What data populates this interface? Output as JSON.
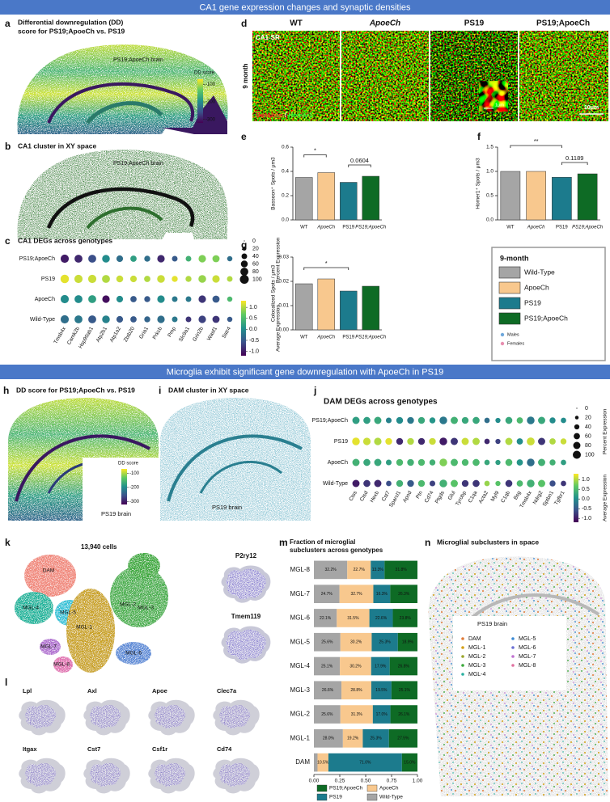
{
  "banners": [
    "CA1 gene expression changes and synaptic densities",
    "Microglia exhibit significant gene downregulation with ApoeCh in PS19"
  ],
  "panel_a": {
    "letter": "a",
    "title_lines": [
      "Differential downregulation (DD)",
      "score for PS19;ApoeCh vs. PS19"
    ],
    "image_label": "PS19;ApoeCh brain",
    "colorbar": {
      "title": "DD score",
      "range": [
        -320,
        -70
      ],
      "ticks": [
        -100,
        -200,
        -300
      ]
    }
  },
  "panel_b": {
    "letter": "b",
    "title": "CA1 cluster in XY space",
    "image_label": "PS19;ApoeCh brain"
  },
  "panel_c": {
    "letter": "c",
    "title": "CA1 DEGs across genotypes"
  },
  "panel_d": {
    "letter": "d",
    "columns": [
      "WT",
      "ApoeCh",
      "PS19",
      "PS19;ApoeCh"
    ],
    "column_colors": [
      "#8c8c8c",
      "#c9b07a",
      "#1c7b8d",
      "#0e6b25"
    ],
    "row_label": "9 month",
    "region": "CA1-SR",
    "stains": [
      "Bassoon",
      " / ",
      "Homer1"
    ],
    "scale_inset": "1μm",
    "scale": "10μm"
  },
  "panel_e": {
    "letter": "e"
  },
  "panel_f": {
    "letter": "f"
  },
  "panel_g": {
    "letter": "g"
  },
  "legend_box": {
    "title": "9-month",
    "entries": [
      {
        "name": "Wild-Type",
        "color": "#a5a5a5"
      },
      {
        "name": "ApoeCh",
        "color": "#f8c88e"
      },
      {
        "name": "PS19",
        "color": "#1c7b8d"
      },
      {
        "name": "PS19;ApoeCh",
        "color": "#0e6b25"
      }
    ],
    "sex": [
      {
        "name": "Males",
        "color": "#6fa8dc"
      },
      {
        "name": "Females",
        "color": "#e88fb0"
      }
    ]
  },
  "panel_h": {
    "letter": "h",
    "title": "DD score for PS19;ApoeCh vs. PS19",
    "image_label": "PS19 brain",
    "colorbar": {
      "title": "DD score",
      "range": [
        -320,
        -70
      ],
      "ticks": [
        -100,
        -200,
        -300
      ]
    }
  },
  "panel_i": {
    "letter": "i",
    "title": "DAM cluster in XY space",
    "image_label": "PS19 brain"
  },
  "panel_j": {
    "letter": "j"
  },
  "panel_k": {
    "letter": "k",
    "cell_count": "13,940 cells",
    "clusters": [
      "DAM",
      "MGL-1",
      "MGL-2",
      "MGL-3",
      "MGL-4",
      "MGL-5",
      "MGL-6",
      "MGL-7",
      "MGL-8"
    ],
    "markers": [
      "P2ry12",
      "Tmem119"
    ]
  },
  "panel_l": {
    "letter": "l",
    "genes": [
      "Lpl",
      "Axl",
      "Apoe",
      "Clec7a",
      "Itgax",
      "Cst7",
      "Csf1r",
      "Cd74"
    ]
  },
  "panel_m": {
    "letter": "m"
  },
  "panel_n": {
    "letter": "n",
    "title": "Microglial subclusters in space",
    "image_label": "PS19 brain",
    "legend": [
      {
        "name": "DAM",
        "color": "#e07b39"
      },
      {
        "name": "MGL-1",
        "color": "#d4a017"
      },
      {
        "name": "MGL-2",
        "color": "#9aa52a"
      },
      {
        "name": "MGL-3",
        "color": "#3aa83a"
      },
      {
        "name": "MGL-4",
        "color": "#2ab0a0"
      },
      {
        "name": "MGL-5",
        "color": "#3a8ad4"
      },
      {
        "name": "MGL-6",
        "color": "#6a6fd4"
      },
      {
        "name": "MGL-7",
        "color": "#c070d0"
      },
      {
        "name": "MGL-8",
        "color": "#e070a0"
      }
    ]
  },
  "chart_data": [
    {
      "type": "dotplot",
      "rows": [
        "PS19;ApoeCh",
        "PS19",
        "ApoeCh",
        "Wild-Type"
      ],
      "columns": [
        "Tmsb4x",
        "Camk2b",
        "Hsp90ab1",
        "Atp2b1",
        "Atp1a2",
        "Zbtb20",
        "Gria1",
        "Prkcb",
        "Pmp",
        "Slc9a1",
        "Grin2b",
        "Wasf1",
        "Sstr4"
      ],
      "expression": [
        [
          -1.0,
          -0.9,
          -0.6,
          0.0,
          -0.3,
          0.2,
          -0.3,
          -0.9,
          -0.5,
          0.4,
          0.8,
          0.8,
          -0.3
        ],
        [
          1.2,
          1.1,
          1.1,
          1.0,
          1.1,
          1.1,
          1.0,
          1.1,
          1.2,
          1.0,
          0.9,
          1.1,
          1.0
        ],
        [
          0.0,
          0.0,
          0.2,
          -1.1,
          0.0,
          -0.5,
          -0.5,
          0.0,
          -0.2,
          -0.2,
          -0.8,
          -0.5,
          0.5
        ],
        [
          -0.3,
          -0.2,
          -0.5,
          -0.1,
          -0.5,
          -0.5,
          -0.4,
          -0.3,
          -0.2,
          -0.8,
          -0.7,
          -0.8,
          -0.5
        ]
      ],
      "percent": [
        [
          85,
          80,
          80,
          75,
          55,
          50,
          45,
          70,
          40,
          40,
          70,
          65,
          35
        ],
        [
          90,
          85,
          85,
          80,
          60,
          55,
          50,
          75,
          45,
          45,
          75,
          70,
          40
        ],
        [
          85,
          80,
          80,
          70,
          55,
          50,
          45,
          70,
          40,
          40,
          70,
          65,
          35
        ],
        [
          85,
          80,
          80,
          75,
          55,
          50,
          45,
          70,
          40,
          40,
          70,
          65,
          35
        ]
      ],
      "colormap": "viridis",
      "clim": [
        -1.2,
        1.3
      ],
      "size_legend": {
        "title": "Percent Expression",
        "values": [
          0,
          20,
          40,
          60,
          80,
          100
        ]
      },
      "color_legend": {
        "title": "Average Expression",
        "ticks": [
          {
            "value": 1,
            "label": "1.0"
          },
          0.5,
          {
            "value": 0,
            "label": "0.0"
          },
          -0.5,
          {
            "value": -1,
            "label": "-1.0"
          }
        ]
      }
    },
    {
      "type": "bar",
      "categories": [
        "WT",
        "ApoeCh",
        "PS19",
        "PS19;ApoeCh"
      ],
      "values": [
        0.35,
        0.39,
        0.31,
        0.36
      ],
      "colors": [
        "#a5a5a5",
        "#f8c88e",
        "#1c7b8d",
        "#0e6b25"
      ],
      "y_label": "Bassoon⁺ Spots / μm3",
      "ylim": [
        0,
        0.6
      ],
      "yticks": [
        {
          "value": 0,
          "label": "0.0"
        },
        0.2,
        0.4,
        0.6
      ],
      "significance": [
        {
          "label": "*",
          "between": [
            "WT",
            "ApoeCh"
          ]
        },
        {
          "label": "0.0604",
          "between": [
            "PS19",
            "PS19;ApoeCh"
          ]
        }
      ]
    },
    {
      "type": "bar",
      "categories": [
        "WT",
        "ApoeCh",
        "PS19",
        "PS19;ApoeCh"
      ],
      "values": [
        1.0,
        1.0,
        0.88,
        0.95
      ],
      "colors": [
        "#a5a5a5",
        "#f8c88e",
        "#1c7b8d",
        "#0e6b25"
      ],
      "y_label": "Homer1⁺ Spots / μm3",
      "ylim": [
        0,
        1.5
      ],
      "yticks": [
        {
          "value": 0,
          "label": "0.0"
        },
        0.5,
        {
          "value": 1,
          "label": "1.0"
        },
        1.5
      ],
      "significance": [
        {
          "label": "**",
          "between": [
            "WT",
            "PS19"
          ]
        },
        {
          "label": "0.1189",
          "between": [
            "PS19",
            "PS19;ApoeCh"
          ]
        }
      ]
    },
    {
      "type": "bar",
      "categories": [
        "WT",
        "ApoeCh",
        "PS19",
        "PS19;ApoeCh"
      ],
      "values": [
        0.019,
        0.021,
        0.016,
        0.018
      ],
      "colors": [
        "#a5a5a5",
        "#f8c88e",
        "#1c7b8d",
        "#0e6b25"
      ],
      "y_label": "Colocalized Spots / μm3",
      "ylim": [
        0,
        0.03
      ],
      "yticks": [
        {
          "value": 0,
          "label": "0.00"
        },
        0.01,
        0.02,
        0.03
      ],
      "significance": [
        {
          "label": "*",
          "between": [
            "WT",
            "PS19"
          ]
        }
      ]
    },
    {
      "type": "dotplot",
      "title": "DAM DEGs across genotypes",
      "rows": [
        "PS19;ApoeCh",
        "PS19",
        "ApoeCh",
        "Wild-Type"
      ],
      "columns": [
        "Ctss",
        "Ctsd",
        "Hexb",
        "Cst7",
        "Sparcl1",
        "Apod",
        "Ptn",
        "Cd74",
        "Ptgds",
        "Glul",
        "Tyrobp",
        "C1qa",
        "Acta2",
        "Myl9",
        "C1qb",
        "Bsg",
        "Tmsb4x",
        "Ndrg2",
        "Sptbn1",
        "Tgfbr1"
      ],
      "expression": [
        [
          0.2,
          0.2,
          0.3,
          -0.1,
          0.0,
          -0.2,
          0.3,
          0.1,
          -0.2,
          0.4,
          0.3,
          0.3,
          -0.3,
          0.0,
          0.3,
          0.5,
          -0.2,
          0.3,
          0.0,
          0.0
        ],
        [
          1.2,
          1.1,
          1.0,
          1.2,
          -0.9,
          1.0,
          -0.9,
          1.1,
          -1.0,
          -0.8,
          1.1,
          1.0,
          -0.9,
          -0.7,
          1.0,
          0.0,
          1.1,
          -0.8,
          1.0,
          1.1
        ],
        [
          0.4,
          0.3,
          0.3,
          0.2,
          0.5,
          0.4,
          0.5,
          0.4,
          0.8,
          0.5,
          0.5,
          0.5,
          0.3,
          0.2,
          0.5,
          0.1,
          -0.3,
          0.4,
          0.4,
          0.2
        ],
        [
          -1.0,
          -0.8,
          -0.9,
          -0.6,
          0.4,
          -0.5,
          0.5,
          -0.7,
          0.4,
          0.6,
          -0.8,
          -0.8,
          0.9,
          0.6,
          -0.8,
          0.5,
          0.4,
          0.6,
          -0.6,
          -0.8
        ]
      ],
      "percent": [
        [
          80,
          75,
          80,
          50,
          70,
          70,
          70,
          55,
          90,
          80,
          70,
          75,
          45,
          40,
          75,
          60,
          90,
          80,
          55,
          45
        ],
        [
          90,
          85,
          85,
          70,
          70,
          70,
          70,
          70,
          90,
          80,
          80,
          80,
          45,
          40,
          80,
          60,
          95,
          80,
          60,
          55
        ],
        [
          80,
          75,
          80,
          50,
          70,
          70,
          70,
          55,
          90,
          80,
          70,
          75,
          45,
          40,
          75,
          60,
          90,
          80,
          55,
          45
        ],
        [
          80,
          75,
          80,
          45,
          70,
          70,
          70,
          50,
          90,
          80,
          70,
          75,
          45,
          40,
          75,
          60,
          90,
          80,
          55,
          45
        ]
      ],
      "colormap": "viridis",
      "clim": [
        -1.2,
        1.3
      ],
      "size_legend": {
        "title": "Percent Expression",
        "values": [
          0,
          20,
          40,
          60,
          80,
          100
        ]
      },
      "color_legend": {
        "title": "Average Expression",
        "ticks": [
          {
            "value": 1,
            "label": "1.0"
          },
          0.5,
          {
            "value": 0,
            "label": "0.0"
          },
          -0.5,
          {
            "value": -1,
            "label": "-1.0"
          }
        ]
      }
    },
    {
      "type": "stacked_barh",
      "title_lines": [
        "Fraction of microglial",
        "subclusters across genotypes"
      ],
      "categories": [
        "MGL-8",
        "MGL-7",
        "MGL-6",
        "MGL-5",
        "MGL-4",
        "MGL-3",
        "MGL-2",
        "MGL-1",
        "DAM"
      ],
      "series": [
        {
          "name": "Wild-Type",
          "color": "#a5a5a5",
          "values": [
            0.322,
            0.247,
            0.221,
            0.256,
            0.251,
            0.266,
            0.256,
            0.28,
            0.035
          ],
          "value_labels": [
            "32.2%",
            "24.7%",
            "22.1%",
            "25.6%",
            "25.1%",
            "26.6%",
            "25.6%",
            "28.0%",
            null
          ]
        },
        {
          "name": "ApoeCh",
          "color": "#f8c88e",
          "values": [
            0.227,
            0.327,
            0.315,
            0.302,
            0.302,
            0.288,
            0.313,
            0.192,
            0.105
          ],
          "value_labels": [
            "22.7%",
            "32.7%",
            "31.5%",
            "30.2%",
            "30.2%",
            "28.8%",
            "31.3%",
            "19.2%",
            "10.5%"
          ]
        },
        {
          "name": "PS19",
          "color": "#1c7b8d",
          "values": [
            0.133,
            0.163,
            0.226,
            0.253,
            0.179,
            0.195,
            0.17,
            0.253,
            0.71
          ],
          "value_labels": [
            "13.3%",
            "16.3%",
            "22.6%",
            "25.3%",
            "17.9%",
            "19.5%",
            "17.0%",
            "25.3%",
            "71.0%"
          ]
        },
        {
          "name": "PS19;ApoeCh",
          "color": "#0e6b25",
          "values": [
            0.318,
            0.263,
            0.238,
            0.189,
            0.268,
            0.251,
            0.261,
            0.275,
            0.15
          ],
          "value_labels": [
            "31.8%",
            "26.3%",
            "23.8%",
            "18.9%",
            "26.8%",
            "25.1%",
            "26.1%",
            "27.5%",
            "15.0%"
          ]
        }
      ],
      "xlim": [
        0,
        1
      ],
      "xticks": [
        {
          "value": 0,
          "label": "0.00"
        },
        0.25,
        {
          "value": 0.5,
          "label": "0.50"
        },
        0.75,
        {
          "value": 1,
          "label": "1.00"
        }
      ]
    }
  ]
}
